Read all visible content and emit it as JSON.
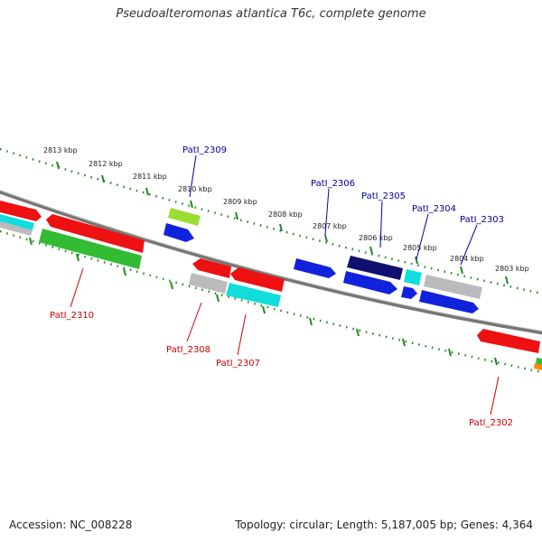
{
  "header": {
    "title": "Pseudoalteromonas atlantica T6c, complete genome"
  },
  "footer": {
    "accession": "Accession: NC_008228",
    "summary": "Topology: circular; Length: 5,187,005 bp; Genes: 4,364"
  },
  "scale_labels": [
    "2813 kbp",
    "2812 kbp",
    "2811 kbp",
    "2810 kbp",
    "2809 kbp",
    "2808 kbp",
    "2807 kbp",
    "2806 kbp",
    "2805 kbp",
    "2804 kbp",
    "2803 kbp"
  ],
  "gene_labels_top": [
    "PatI_2309",
    "PatI_2306",
    "PatI_2305",
    "PatI_2304",
    "PatI_2303"
  ],
  "gene_labels_bottom": [
    "PatI_2310",
    "PatI_2308",
    "PatI_2307",
    "PatI_2302"
  ],
  "colors": {
    "red": "#ee1111",
    "green": "#33bb33",
    "lime": "#99dd33",
    "blue": "#1122dd",
    "navy": "#101070",
    "cyan": "#11dddd",
    "gray": "#bbbbbb",
    "orange": "#ff8800",
    "tick": "#228822",
    "backbone": "#777777"
  }
}
